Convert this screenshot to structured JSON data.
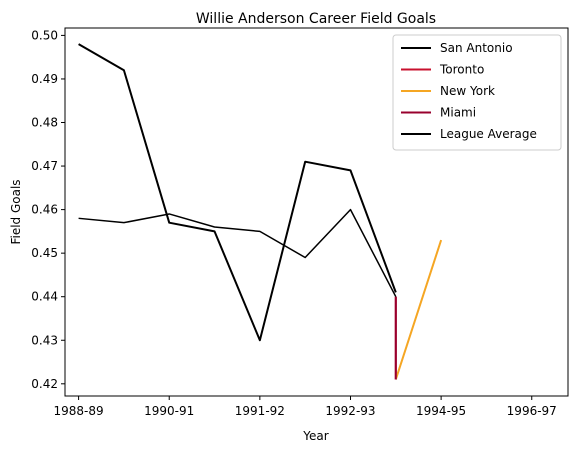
{
  "chart_data": {
    "type": "line",
    "title": "Willie Anderson  Career Field Goals",
    "xlabel": "Year",
    "ylabel": "Field Goals",
    "x_tick_labels": [
      "1988-89",
      "1990-91",
      "1991-92",
      "1992-93",
      "1994-95",
      "1996-97"
    ],
    "x_tick_positions": [
      0,
      2,
      4,
      6,
      8,
      10
    ],
    "xlim": [
      -0.3,
      10.8
    ],
    "ylim": [
      0.4172,
      0.5017
    ],
    "y_ticks": [
      0.42,
      0.43,
      0.44,
      0.45,
      0.46,
      0.47,
      0.48,
      0.49,
      0.5
    ],
    "y_tick_labels": [
      "0.42",
      "0.43",
      "0.44",
      "0.45",
      "0.46",
      "0.47",
      "0.48",
      "0.49",
      "0.50"
    ],
    "grid": false,
    "legend_position": "top-right",
    "series": [
      {
        "name": "San Antonio",
        "color": "#000000",
        "width": 2,
        "points": [
          [
            0,
            0.498
          ],
          [
            1,
            0.492
          ],
          [
            2,
            0.457
          ],
          [
            3,
            0.455
          ],
          [
            4,
            0.43
          ],
          [
            5,
            0.471
          ],
          [
            6,
            0.469
          ],
          [
            7,
            0.441
          ]
        ]
      },
      {
        "name": "Toronto",
        "color": "#c8102e",
        "width": 2,
        "points": [
          [
            7,
            0.44
          ],
          [
            7,
            0.421
          ]
        ]
      },
      {
        "name": "New York",
        "color": "#f5a623",
        "width": 2,
        "points": [
          [
            7,
            0.421
          ],
          [
            8,
            0.453
          ]
        ]
      },
      {
        "name": "Miami",
        "color": "#98002e",
        "width": 2,
        "points": [
          [
            7,
            0.44
          ],
          [
            7,
            0.421
          ]
        ]
      },
      {
        "name": "League Average",
        "color": "#000000",
        "width": 1.5,
        "points": [
          [
            0,
            0.458
          ],
          [
            1,
            0.457
          ],
          [
            2,
            0.459
          ],
          [
            3,
            0.456
          ],
          [
            4,
            0.455
          ],
          [
            5,
            0.449
          ],
          [
            6,
            0.46
          ],
          [
            7,
            0.44
          ]
        ]
      }
    ]
  }
}
